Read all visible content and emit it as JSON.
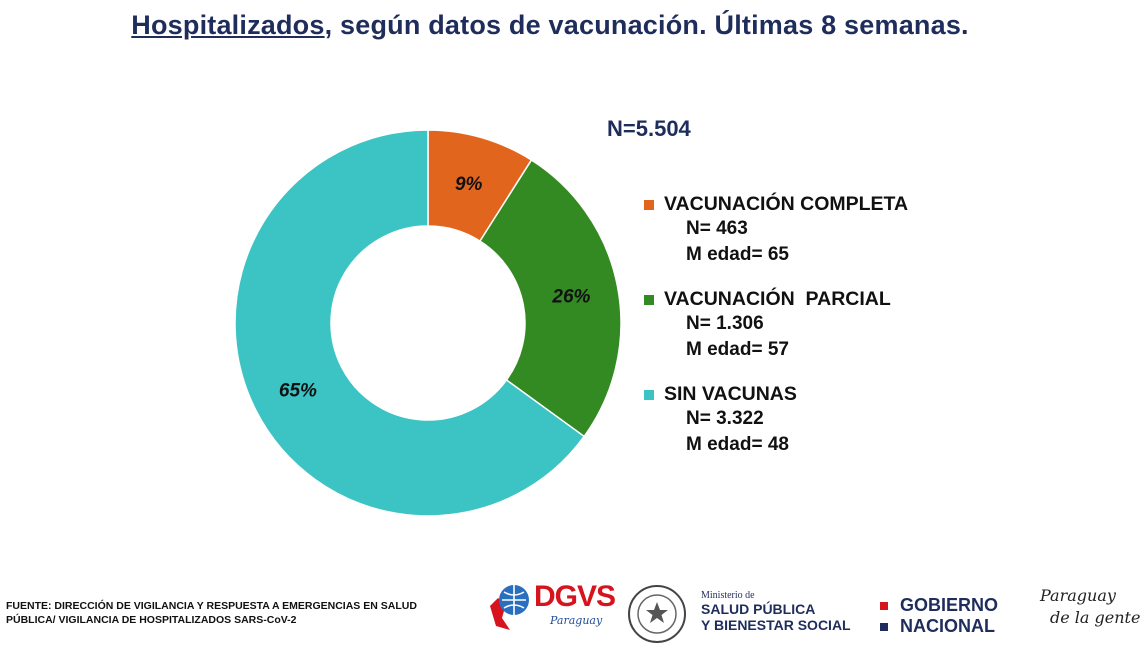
{
  "title": {
    "underlined": "Hospitalizados",
    "rest": ", según datos de vacunación. Últimas 8 semanas."
  },
  "total_label": "N=5.504",
  "chart_data": {
    "type": "pie",
    "donut": true,
    "slices": [
      {
        "name": "VACUNACIÓN COMPLETA",
        "value": 9,
        "label": "9%",
        "color": "#e2651e",
        "n": "N= 463",
        "age": "M edad= 65"
      },
      {
        "name": "VACUNACIÓN  PARCIAL",
        "value": 26,
        "label": "26%",
        "color": "#338a22",
        "n": "N= 1.306",
        "age": "M edad= 57"
      },
      {
        "name": "SIN VACUNAS",
        "value": 65,
        "label": "65%",
        "color": "#3cc3c3",
        "n": "N= 3.322",
        "age": "M edad= 48"
      }
    ],
    "legend_position": "right"
  },
  "footer": {
    "source": "FUENTE: DIRECCIÓN DE VIGILANCIA Y RESPUESTA A EMERGENCIAS EN SALUD PÚBLICA/ VIGILANCIA DE HOSPITALIZADOS SARS-CoV-2",
    "dgvs": {
      "name": "DGVS",
      "sub": "Paraguay",
      "color": "#d7141d"
    },
    "ministry": {
      "small": "Ministerio de",
      "line1": "SALUD PÚBLICA",
      "line2": "Y BIENESTAR SOCIAL"
    },
    "gobierno": {
      "line1": "GOBIERNO",
      "line2": "NACIONAL"
    },
    "slogan": {
      "line1": "Paraguay",
      "line2": "de la gente"
    }
  }
}
